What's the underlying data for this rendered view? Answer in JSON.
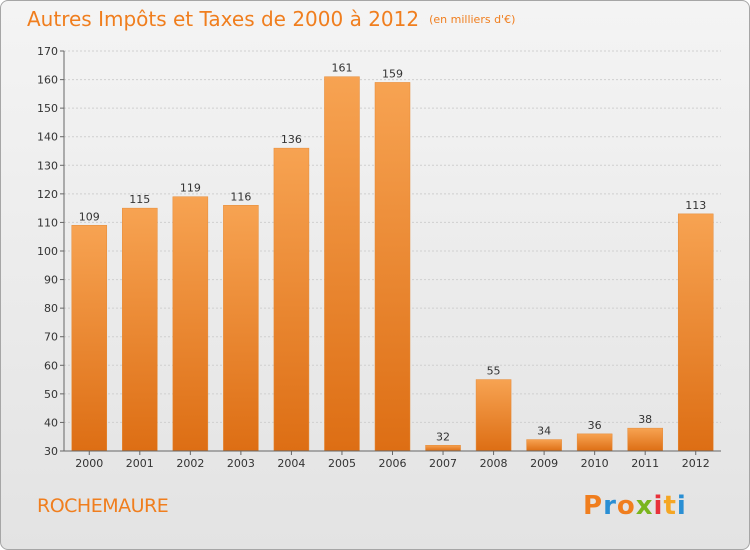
{
  "header": {
    "title": "Autres Impôts et Taxes de 2000 à 2012",
    "unit": "(en milliers d'€)"
  },
  "footer": {
    "commune": "ROCHEMAURE",
    "brand": "Proxiti"
  },
  "colors": {
    "accent": "#f07e1e",
    "bar_top": "#f7a352",
    "bar_bottom": "#dd6e14",
    "logo_letters": [
      "#f07e1e",
      "#2a8fd4",
      "#f07e1e",
      "#7ab51d",
      "#e8313a",
      "#f5a623",
      "#2a8fd4"
    ]
  },
  "chart_data": {
    "type": "bar",
    "title": "Autres Impôts et Taxes de 2000 à 2012",
    "subtitle": "(en milliers d'€)",
    "categories": [
      "2000",
      "2001",
      "2002",
      "2003",
      "2004",
      "2005",
      "2006",
      "2007",
      "2008",
      "2009",
      "2010",
      "2011",
      "2012"
    ],
    "values": [
      109,
      115,
      119,
      116,
      136,
      161,
      159,
      32,
      55,
      34,
      36,
      38,
      113
    ],
    "ylim": [
      30,
      170
    ],
    "yticks": [
      30,
      40,
      50,
      60,
      70,
      80,
      90,
      100,
      110,
      120,
      130,
      140,
      150,
      160,
      170
    ],
    "grid": true,
    "legend": "none"
  }
}
